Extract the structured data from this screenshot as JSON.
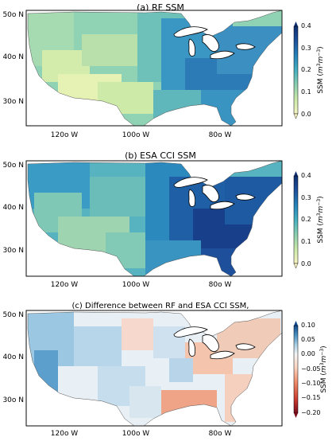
{
  "panels": [
    {
      "title": "(a) RF SSM",
      "lat_ticks": [
        "50o N",
        "40o N",
        "30o N"
      ],
      "lon_ticks": [
        "120o W",
        "100o W",
        "80o W"
      ],
      "colorbar": {
        "label_prefix": "SSM",
        "unit_base": "m",
        "unit_exp1": "3",
        "unit_exp2": "−3",
        "ticks": [
          "0.4",
          "0.3",
          "0.2",
          "0.1",
          "0.0"
        ],
        "colormap": [
          "#f7f4c4",
          "#c9e8a8",
          "#88cdb0",
          "#46b0c2",
          "#2581b9",
          "#1d4f9b",
          "#0f2f70"
        ]
      }
    },
    {
      "title": "(b) ESA CCI SSM",
      "lat_ticks": [
        "50o N",
        "40o N",
        "30o N"
      ],
      "lon_ticks": [
        "120o W",
        "100o W",
        "80o W"
      ],
      "colorbar": {
        "label_prefix": "SSM",
        "unit_base": "m",
        "unit_exp1": "3",
        "unit_exp2": "−3",
        "ticks": [
          "0.4",
          "0.3",
          "0.2",
          "0.1",
          "0.0"
        ],
        "colormap": [
          "#f7f4c4",
          "#c9e8a8",
          "#88cdb0",
          "#46b0c2",
          "#2581b9",
          "#1d4f9b",
          "#0f2f70"
        ]
      }
    },
    {
      "title": "(c) Difference between RF and ESA CCI SSM,",
      "lat_ticks": [
        "50o N",
        "40o N",
        "30o N"
      ],
      "lon_ticks": [
        "120o W",
        "100o W",
        "80o W"
      ],
      "colorbar": {
        "label_prefix": "SSM",
        "unit_base": "m",
        "unit_exp1": "3",
        "unit_exp2": "−3",
        "ticks": [
          "0.10",
          "0.05",
          "0.00",
          "−0.05",
          "−0.10",
          "−0.15",
          "−0.20"
        ],
        "colormap": [
          "#7a0c1c",
          "#c8382e",
          "#f08a68",
          "#fbd4c0",
          "#f5f5f5",
          "#a9cfe5",
          "#4a90c2",
          "#124a8c"
        ]
      }
    }
  ]
}
